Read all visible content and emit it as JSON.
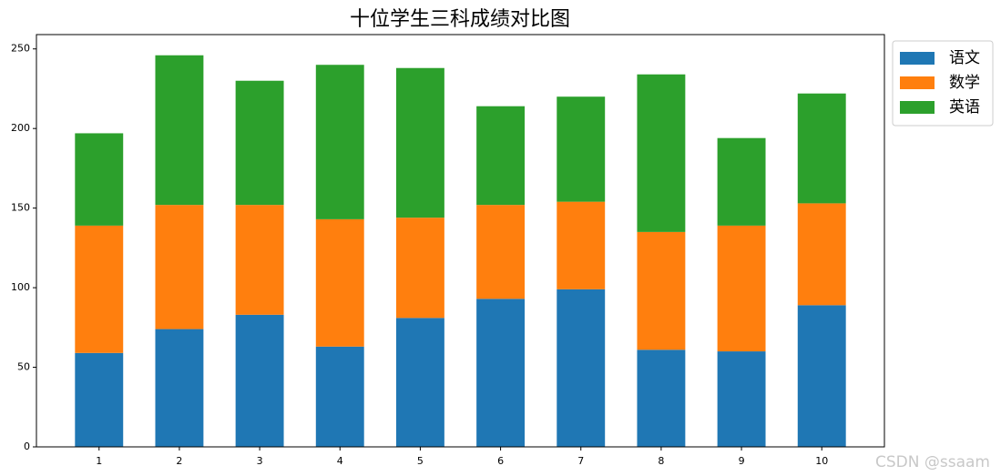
{
  "chart_data": {
    "type": "stacked-bar",
    "title": "十位学生三科成绩对比图",
    "categories": [
      "1",
      "2",
      "3",
      "4",
      "5",
      "6",
      "7",
      "8",
      "9",
      "10"
    ],
    "series": [
      {
        "name": "语文",
        "color": "#1f77b4",
        "values": [
          59,
          74,
          83,
          63,
          81,
          93,
          99,
          61,
          60,
          89
        ]
      },
      {
        "name": "数学",
        "color": "#ff7f0e",
        "values": [
          80,
          78,
          69,
          80,
          63,
          59,
          55,
          74,
          79,
          64
        ]
      },
      {
        "name": "英语",
        "color": "#2ca02c",
        "values": [
          58,
          94,
          78,
          97,
          94,
          62,
          66,
          99,
          55,
          69
        ]
      }
    ],
    "ylim": [
      0,
      259
    ],
    "yticks": [
      0,
      50,
      100,
      150,
      200,
      250
    ],
    "legend": "upper-right-outside",
    "watermark": "CSDN @ssaam"
  }
}
